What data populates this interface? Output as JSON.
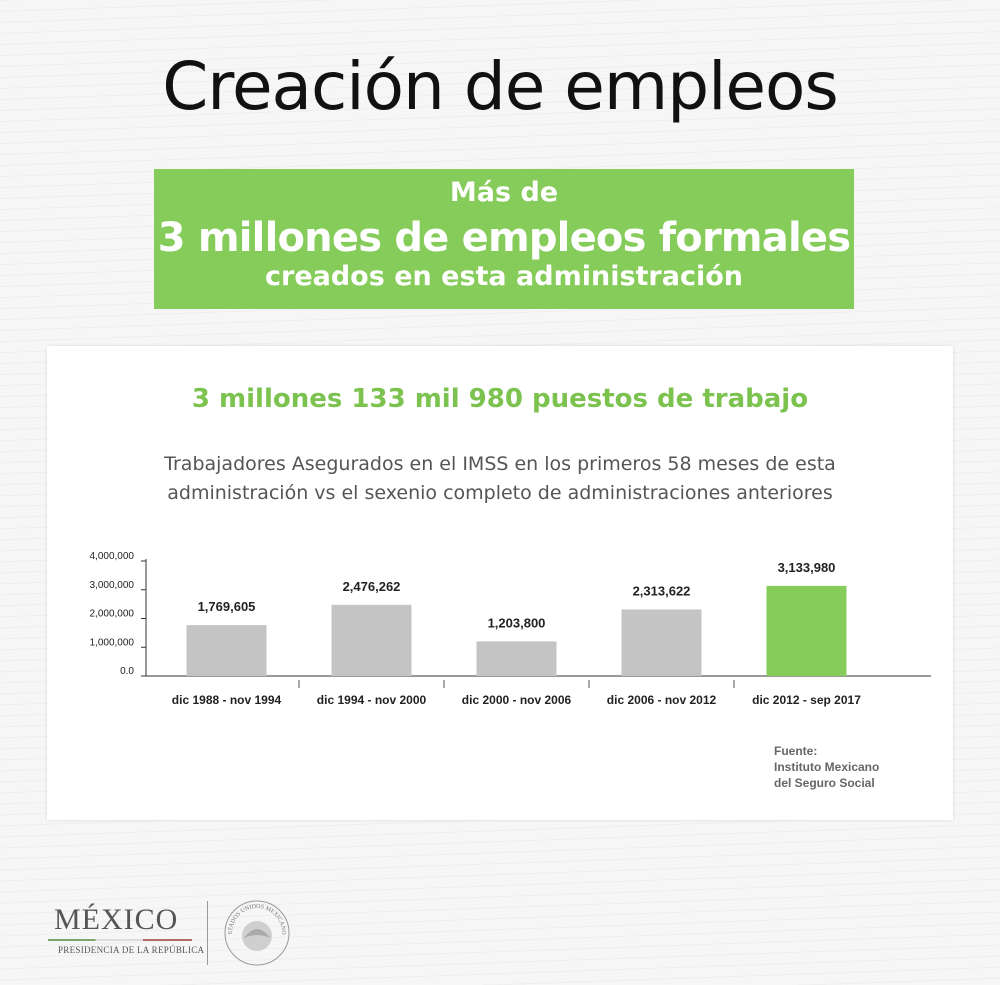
{
  "header": {
    "title": "Creación de empleos"
  },
  "banner": {
    "line1": "Más de",
    "line2": "3 millones de empleos formales",
    "line3": "creados en esta administración"
  },
  "card": {
    "headline": "3 millones 133 mil 980 puestos de trabajo",
    "subtitle": "Trabajadores Asegurados en el IMSS en los primeros 58 meses de esta administración vs el sexenio completo de administraciones anteriores",
    "source": {
      "label": "Fuente:",
      "line1": "Instituto Mexicano",
      "line2": "del Seguro Social"
    }
  },
  "chart_data": {
    "type": "bar",
    "categories": [
      "dic 1988 - nov 1994",
      "dic 1994 - nov 2000",
      "dic 2000 - nov 2006",
      "dic 2006 - nov 2012",
      "dic 2012 - sep 2017"
    ],
    "values": [
      1769605,
      2476262,
      1203800,
      2313622,
      3133980
    ],
    "value_labels": [
      "1,769,605",
      "2,476,262",
      "1,203,800",
      "2,313,622",
      "3,133,980"
    ],
    "ylim": [
      0,
      4000000
    ],
    "yticks": [
      0,
      1000000,
      2000000,
      3000000,
      4000000
    ],
    "ytick_labels": [
      "0.0",
      "1,000,000",
      "2,000,000",
      "3,000,000",
      "4,000,000"
    ],
    "bar_colors": [
      "#c4c4c4",
      "#c4c4c4",
      "#c4c4c4",
      "#c4c4c4",
      "#86cc5b"
    ],
    "grid": false,
    "title": "",
    "xlabel": "",
    "ylabel": ""
  },
  "footer": {
    "logo_word": "MÉXICO",
    "logo_sub": "PRESIDENCIA DE LA REPÚBLICA",
    "seal_text": "ESTADOS UNIDOS MEXICANOS"
  }
}
